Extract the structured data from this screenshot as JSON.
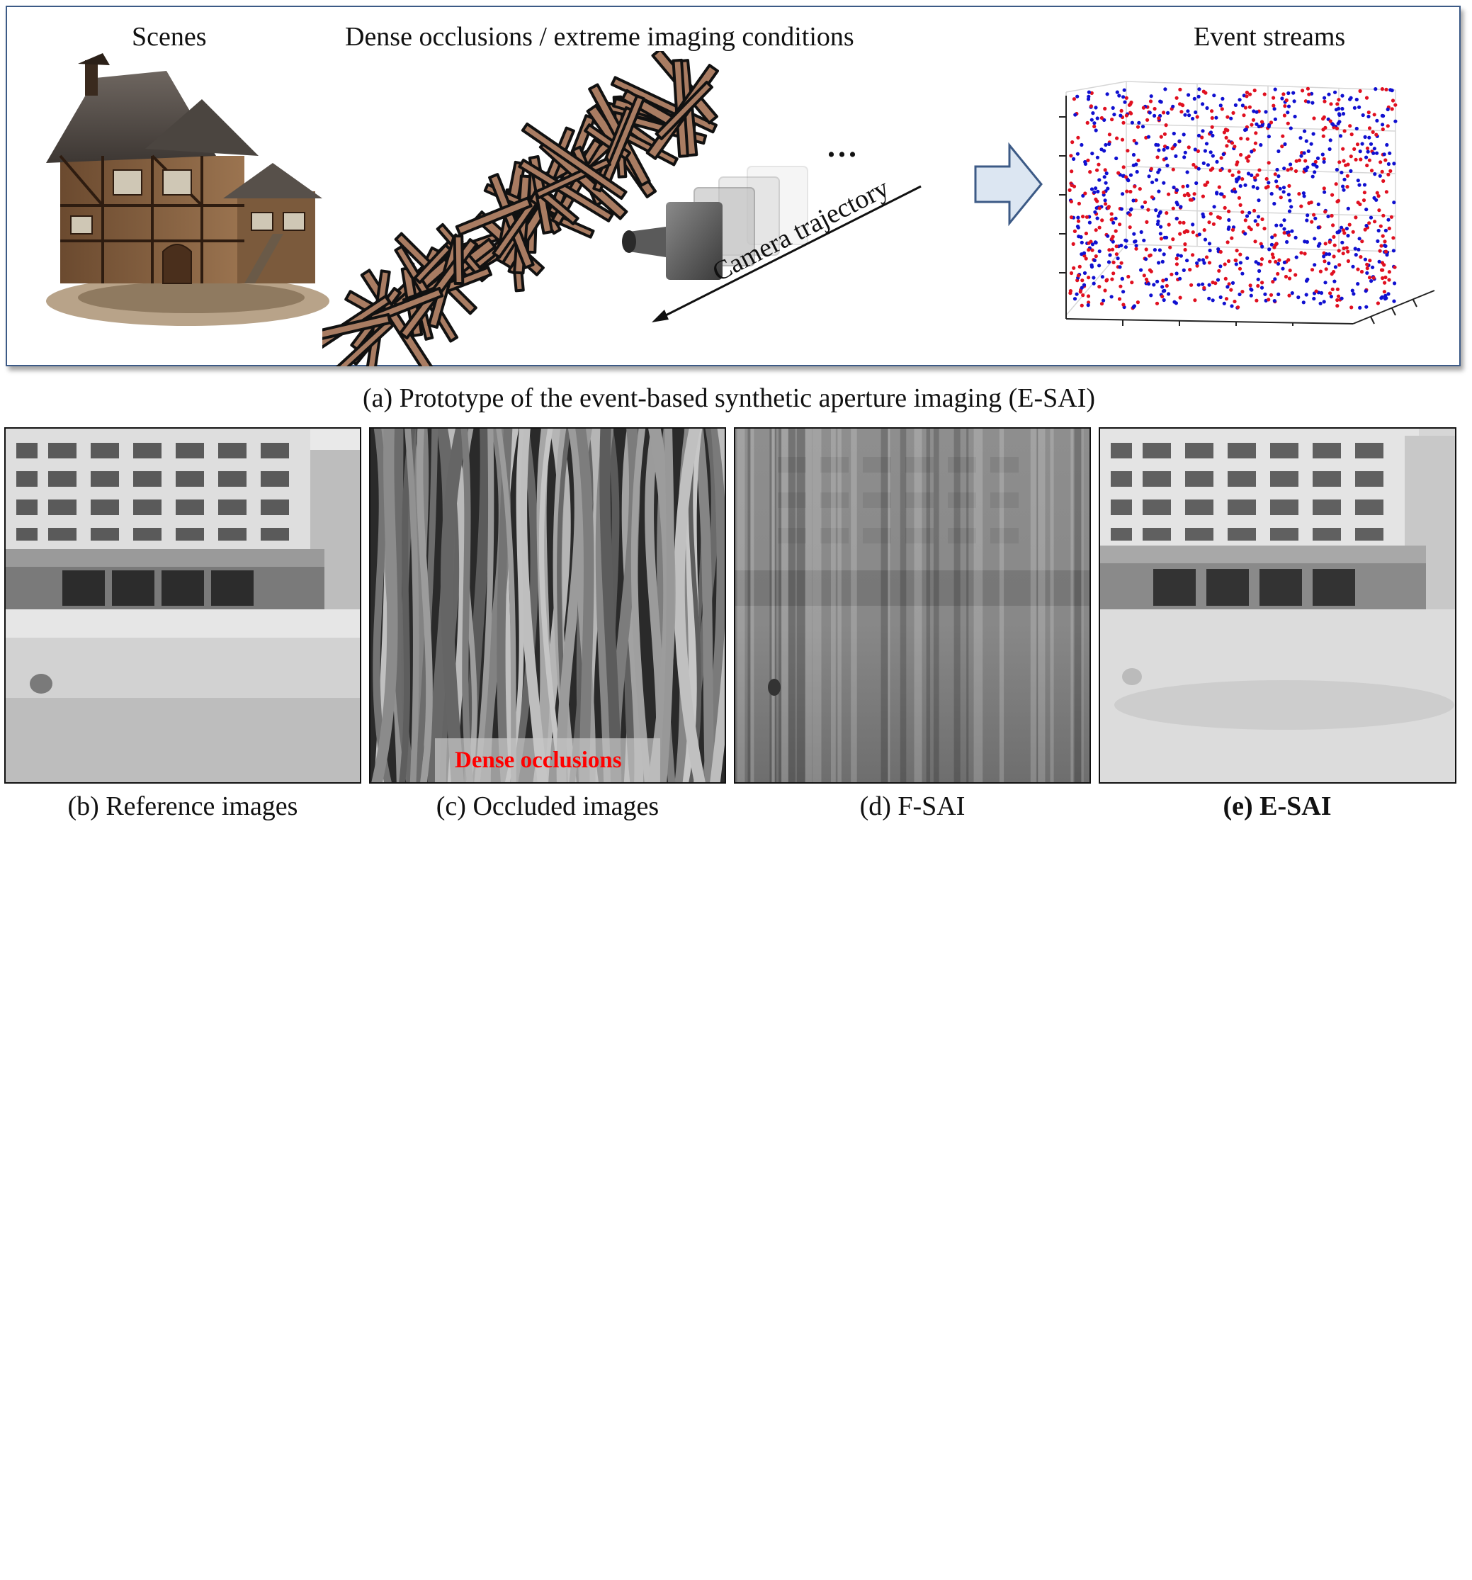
{
  "panel_a": {
    "heading_scenes": "Scenes",
    "heading_occlusions": "Dense occlusions / extreme imaging conditions",
    "heading_events": "Event streams",
    "trajectory_label": "Camera trajectory",
    "ellipsis": "...",
    "caption": "(a) Prototype of the event-based synthetic aperture imaging (E-SAI)"
  },
  "panel_b": {
    "caption": "(b) Reference images"
  },
  "panel_c": {
    "caption": "(c) Occluded images",
    "overlay_label": "Dense occlusions"
  },
  "panel_d": {
    "caption": "(d) F-SAI"
  },
  "panel_e": {
    "caption": "(e) E-SAI"
  },
  "colors": {
    "positive_events": "#e01020",
    "negative_events": "#1010d0",
    "occluder_fill": "#a97c62",
    "overlay_text": "#ff0000",
    "panel_border": "#3c5a86"
  }
}
